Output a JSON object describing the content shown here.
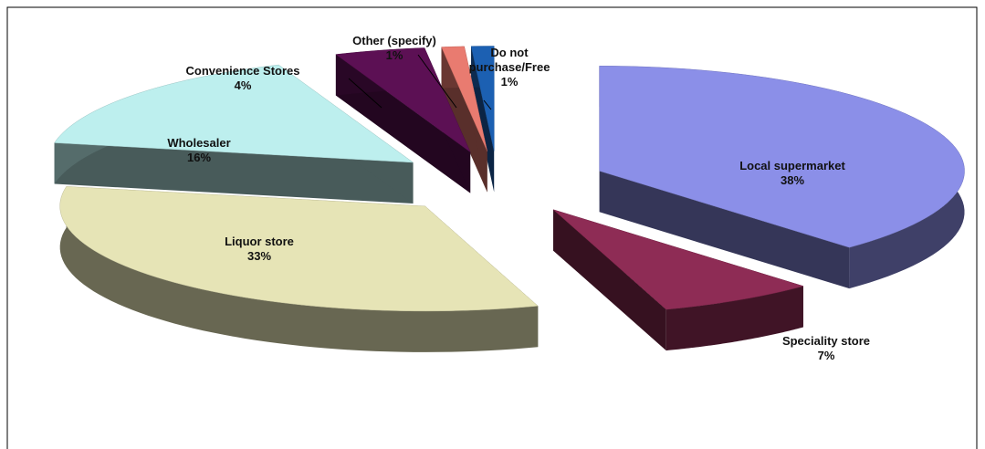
{
  "chart_data": {
    "type": "pie",
    "categories": [
      "Local supermarket",
      "Speciality store",
      "Liquor store",
      "Wholesaler",
      "Convenience Stores",
      "Other (specify)",
      "Do not purchase/Free"
    ],
    "values": [
      38,
      7,
      33,
      16,
      4,
      1,
      1
    ],
    "value_labels": [
      "38%",
      "7%",
      "33%",
      "16%",
      "4%",
      "1%",
      "1%"
    ],
    "colors": [
      "#8b8fe8",
      "#8e2c55",
      "#e6e4b6",
      "#bdefee",
      "#5c1054",
      "#e97b70",
      "#1c60b2"
    ]
  }
}
